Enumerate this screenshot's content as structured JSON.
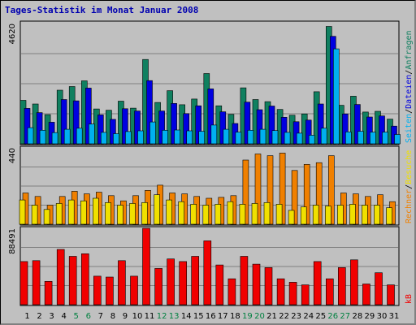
{
  "chart_data": [
    {
      "type": "bar",
      "title": "Tages-Statistik im Monat Januar 2008",
      "scale_label": "4620",
      "ylim": [
        0,
        4620
      ],
      "categories": [
        "1",
        "2",
        "3",
        "4",
        "5",
        "6",
        "7",
        "8",
        "9",
        "10",
        "11",
        "12",
        "13",
        "14",
        "15",
        "16",
        "17",
        "18",
        "19",
        "20",
        "21",
        "22",
        "23",
        "24",
        "25",
        "26",
        "27",
        "28",
        "29",
        "30",
        "31"
      ],
      "weekend_days": [
        "5",
        "6",
        "12",
        "13",
        "19",
        "20",
        "26",
        "27"
      ],
      "series": [
        {
          "name": "Anfragen",
          "color": "#108060",
          "values": [
            1670,
            1530,
            1120,
            2060,
            2200,
            2420,
            1340,
            1290,
            1640,
            1370,
            3240,
            1590,
            2040,
            1500,
            1720,
            2700,
            1460,
            1130,
            2150,
            1700,
            1620,
            1320,
            1100,
            1150,
            2000,
            4510,
            1480,
            1830,
            1220,
            1250,
            950
          ]
        },
        {
          "name": "Dateien",
          "color": "#0000e0",
          "values": [
            1360,
            1200,
            830,
            1700,
            1650,
            2140,
            1110,
            940,
            1350,
            1260,
            2430,
            1260,
            1550,
            1160,
            1460,
            2110,
            1230,
            780,
            1600,
            1310,
            1450,
            1020,
            850,
            910,
            1530,
            4130,
            1150,
            1510,
            1030,
            1070,
            680
          ]
        },
        {
          "name": "Seiten",
          "color": "#00b0f0",
          "values": [
            620,
            520,
            430,
            560,
            600,
            760,
            440,
            390,
            470,
            500,
            840,
            520,
            530,
            500,
            480,
            720,
            560,
            450,
            520,
            560,
            510,
            440,
            410,
            330,
            600,
            3650,
            460,
            480,
            450,
            450,
            360
          ]
        }
      ]
    },
    {
      "type": "bar",
      "scale_label": "440",
      "ylim": [
        0,
        440
      ],
      "series": [
        {
          "name": "Besuche",
          "color": "#f08000",
          "values": [
            180,
            160,
            110,
            160,
            190,
            175,
            185,
            165,
            135,
            165,
            195,
            225,
            180,
            175,
            160,
            150,
            155,
            165,
            370,
            405,
            395,
            410,
            310,
            345,
            355,
            395,
            180,
            175,
            160,
            170,
            130
          ]
        },
        {
          "name": "Rechner",
          "color": "#f0e000",
          "values": [
            140,
            110,
            85,
            120,
            140,
            135,
            150,
            125,
            110,
            120,
            125,
            170,
            140,
            130,
            115,
            110,
            115,
            130,
            115,
            120,
            125,
            115,
            80,
            100,
            110,
            105,
            110,
            115,
            110,
            110,
            95
          ]
        }
      ]
    },
    {
      "type": "bar",
      "scale_label": "88491",
      "ylim": [
        0,
        88491
      ],
      "series": [
        {
          "name": "kB",
          "color": "#f00000",
          "values": [
            50000,
            51000,
            27000,
            64000,
            56000,
            59000,
            33000,
            32000,
            51000,
            33000,
            88491,
            42000,
            53000,
            50000,
            56000,
            74000,
            46000,
            30000,
            56000,
            47000,
            43000,
            30000,
            26000,
            23000,
            50000,
            30000,
            43000,
            52000,
            24000,
            37000,
            23000
          ]
        }
      ]
    }
  ],
  "legend": {
    "kb": "kB",
    "rechner": "Rechner",
    "besuche": "Besuche",
    "seiten": "Seiten",
    "dateien": "Dateien",
    "anfragen": "Anfragen",
    "sep": "/"
  },
  "colors": {
    "weekday_label": "#000000",
    "weekend_label": "#008040",
    "frame_bg": "#c0c0c0",
    "grid": "#808080"
  }
}
